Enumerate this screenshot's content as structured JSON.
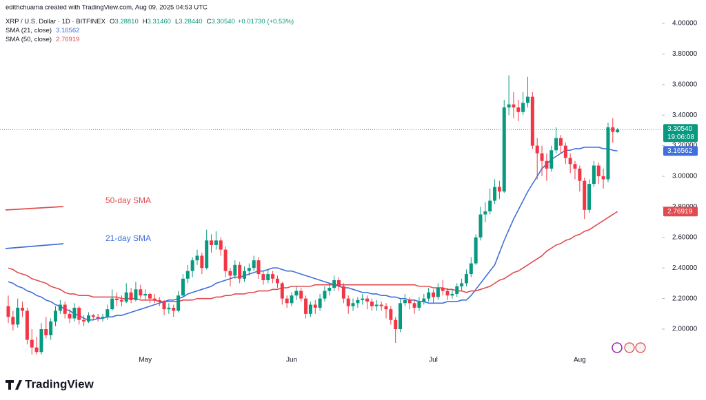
{
  "chart_data": {
    "type": "candlestick",
    "credit": "edithchuama created with TradingView.com, Aug 09, 2025 04:53 UTC",
    "title": "XRP / U.S. Dollar · 1D · BITFINEX",
    "ohlc_header": [
      {
        "key": "O",
        "value": "3.28810"
      },
      {
        "key": "H",
        "value": "3.31460"
      },
      {
        "key": "L",
        "value": "3.28440"
      },
      {
        "key": "C",
        "value": "3.30540"
      }
    ],
    "change": "+0.01730 (+0.53%)",
    "last_price_label": "3.30540",
    "countdown": "19:06:08",
    "logo": "TradingView",
    "up_color": "#089981",
    "down_color": "#f23645",
    "ylim": [
      1.766,
      4.153
    ],
    "yticks": [
      {
        "value": 2.0,
        "label": "2.00000"
      },
      {
        "value": 2.2,
        "label": "2.20000"
      },
      {
        "value": 2.4,
        "label": "2.40000"
      },
      {
        "value": 2.6,
        "label": "2.60000"
      },
      {
        "value": 2.8,
        "label": "2.80000"
      },
      {
        "value": 3.0,
        "label": "3.00000"
      },
      {
        "value": 3.2,
        "label": "3.20000"
      },
      {
        "value": 3.4,
        "label": "3.40000"
      },
      {
        "value": 3.6,
        "label": "3.60000"
      },
      {
        "value": 3.8,
        "label": "3.80000"
      },
      {
        "value": 4.0,
        "label": "4.00000"
      }
    ],
    "categories": [
      null,
      null,
      null,
      null,
      null,
      null,
      null,
      null,
      null,
      null,
      null,
      null,
      null,
      null,
      null,
      null,
      null,
      null,
      null,
      null,
      null,
      null,
      null,
      null,
      null,
      null,
      null,
      null,
      null,
      "May",
      null,
      null,
      null,
      null,
      null,
      null,
      null,
      null,
      null,
      null,
      null,
      null,
      null,
      null,
      null,
      null,
      null,
      null,
      null,
      null,
      null,
      null,
      null,
      null,
      null,
      null,
      null,
      null,
      null,
      null,
      "Jun",
      null,
      null,
      null,
      null,
      null,
      null,
      null,
      null,
      null,
      null,
      null,
      null,
      null,
      null,
      null,
      null,
      null,
      null,
      null,
      null,
      null,
      null,
      null,
      null,
      null,
      null,
      null,
      null,
      null,
      "Jul",
      null,
      null,
      null,
      null,
      null,
      null,
      null,
      null,
      null,
      null,
      null,
      null,
      null,
      null,
      null,
      null,
      null,
      null,
      null,
      null,
      null,
      null,
      null,
      null,
      null,
      null,
      null,
      null,
      null,
      null,
      "Aug",
      null,
      null,
      null,
      null,
      null,
      null,
      null,
      null
    ],
    "ohlc": [
      [
        2.15,
        2.22,
        2.04,
        2.08
      ],
      [
        2.08,
        2.12,
        1.99,
        2.03
      ],
      [
        2.03,
        2.2,
        2.01,
        2.14
      ],
      [
        2.14,
        2.18,
        2.08,
        2.12
      ],
      [
        2.12,
        2.14,
        1.9,
        1.93
      ],
      [
        1.93,
        2.0,
        1.8,
        1.88
      ],
      [
        1.88,
        1.95,
        1.82,
        1.85
      ],
      [
        1.85,
        2.04,
        1.83,
        2.0
      ],
      [
        2.0,
        2.08,
        1.94,
        1.96
      ],
      [
        1.96,
        2.07,
        1.93,
        2.05
      ],
      [
        2.05,
        2.15,
        2.02,
        2.12
      ],
      [
        2.12,
        2.19,
        2.1,
        2.16
      ],
      [
        2.16,
        2.18,
        2.07,
        2.1
      ],
      [
        2.1,
        2.13,
        2.04,
        2.07
      ],
      [
        2.07,
        2.17,
        2.05,
        2.14
      ],
      [
        2.14,
        2.15,
        2.03,
        2.06
      ],
      [
        2.06,
        2.09,
        2.02,
        2.05
      ],
      [
        2.05,
        2.11,
        2.04,
        2.09
      ],
      [
        2.09,
        2.1,
        2.06,
        2.08
      ],
      [
        2.08,
        2.1,
        2.05,
        2.07
      ],
      [
        2.07,
        2.1,
        2.05,
        2.08
      ],
      [
        2.08,
        2.16,
        2.06,
        2.13
      ],
      [
        2.13,
        2.26,
        2.12,
        2.2
      ],
      [
        2.2,
        2.24,
        2.15,
        2.19
      ],
      [
        2.19,
        2.22,
        2.15,
        2.18
      ],
      [
        2.18,
        2.3,
        2.17,
        2.24
      ],
      [
        2.24,
        2.27,
        2.17,
        2.19
      ],
      [
        2.19,
        2.31,
        2.18,
        2.26
      ],
      [
        2.26,
        2.29,
        2.2,
        2.22
      ],
      [
        2.22,
        2.26,
        2.19,
        2.23
      ],
      [
        2.23,
        2.24,
        2.17,
        2.2
      ],
      [
        2.2,
        2.23,
        2.17,
        2.19
      ],
      [
        2.19,
        2.21,
        2.15,
        2.18
      ],
      [
        2.18,
        2.19,
        2.09,
        2.13
      ],
      [
        2.13,
        2.17,
        2.1,
        2.14
      ],
      [
        2.14,
        2.16,
        2.08,
        2.12
      ],
      [
        2.12,
        2.25,
        2.11,
        2.22
      ],
      [
        2.22,
        2.36,
        2.21,
        2.33
      ],
      [
        2.33,
        2.42,
        2.3,
        2.38
      ],
      [
        2.38,
        2.47,
        2.34,
        2.45
      ],
      [
        2.45,
        2.52,
        2.42,
        2.48
      ],
      [
        2.48,
        2.5,
        2.36,
        2.4
      ],
      [
        2.4,
        2.65,
        2.39,
        2.58
      ],
      [
        2.58,
        2.62,
        2.5,
        2.55
      ],
      [
        2.55,
        2.64,
        2.52,
        2.58
      ],
      [
        2.58,
        2.6,
        2.48,
        2.52
      ],
      [
        2.52,
        2.54,
        2.34,
        2.38
      ],
      [
        2.38,
        2.4,
        2.28,
        2.35
      ],
      [
        2.35,
        2.45,
        2.33,
        2.42
      ],
      [
        2.42,
        2.44,
        2.3,
        2.33
      ],
      [
        2.33,
        2.41,
        2.31,
        2.38
      ],
      [
        2.38,
        2.43,
        2.35,
        2.4
      ],
      [
        2.4,
        2.48,
        2.38,
        2.45
      ],
      [
        2.45,
        2.47,
        2.33,
        2.36
      ],
      [
        2.36,
        2.38,
        2.29,
        2.32
      ],
      [
        2.32,
        2.39,
        2.3,
        2.36
      ],
      [
        2.36,
        2.38,
        2.3,
        2.33
      ],
      [
        2.33,
        2.35,
        2.27,
        2.3
      ],
      [
        2.3,
        2.31,
        2.16,
        2.2
      ],
      [
        2.2,
        2.22,
        2.14,
        2.17
      ],
      [
        2.17,
        2.24,
        2.15,
        2.22
      ],
      [
        2.22,
        2.28,
        2.19,
        2.25
      ],
      [
        2.25,
        2.27,
        2.18,
        2.2
      ],
      [
        2.2,
        2.22,
        2.07,
        2.1
      ],
      [
        2.1,
        2.18,
        2.08,
        2.16
      ],
      [
        2.16,
        2.19,
        2.1,
        2.14
      ],
      [
        2.14,
        2.23,
        2.12,
        2.2
      ],
      [
        2.2,
        2.28,
        2.18,
        2.25
      ],
      [
        2.25,
        2.3,
        2.22,
        2.27
      ],
      [
        2.27,
        2.35,
        2.25,
        2.32
      ],
      [
        2.32,
        2.34,
        2.25,
        2.28
      ],
      [
        2.28,
        2.3,
        2.17,
        2.2
      ],
      [
        2.2,
        2.22,
        2.1,
        2.15
      ],
      [
        2.15,
        2.2,
        2.12,
        2.17
      ],
      [
        2.17,
        2.21,
        2.14,
        2.19
      ],
      [
        2.19,
        2.23,
        2.16,
        2.2
      ],
      [
        2.2,
        2.22,
        2.13,
        2.18
      ],
      [
        2.18,
        2.2,
        2.12,
        2.15
      ],
      [
        2.15,
        2.19,
        2.12,
        2.16
      ],
      [
        2.16,
        2.18,
        2.12,
        2.15
      ],
      [
        2.15,
        2.17,
        2.07,
        2.13
      ],
      [
        2.13,
        2.15,
        2.03,
        2.06
      ],
      [
        2.06,
        2.08,
        1.91,
        2.0
      ],
      [
        2.0,
        2.2,
        1.98,
        2.17
      ],
      [
        2.17,
        2.23,
        2.15,
        2.19
      ],
      [
        2.19,
        2.21,
        2.13,
        2.17
      ],
      [
        2.17,
        2.19,
        2.1,
        2.14
      ],
      [
        2.14,
        2.21,
        2.12,
        2.18
      ],
      [
        2.18,
        2.23,
        2.16,
        2.2
      ],
      [
        2.2,
        2.27,
        2.18,
        2.24
      ],
      [
        2.24,
        2.26,
        2.17,
        2.21
      ],
      [
        2.21,
        2.3,
        2.19,
        2.27
      ],
      [
        2.27,
        2.32,
        2.22,
        2.25
      ],
      [
        2.25,
        2.27,
        2.19,
        2.22
      ],
      [
        2.22,
        2.26,
        2.2,
        2.23
      ],
      [
        2.23,
        2.3,
        2.21,
        2.28
      ],
      [
        2.28,
        2.33,
        2.25,
        2.3
      ],
      [
        2.3,
        2.39,
        2.28,
        2.36
      ],
      [
        2.36,
        2.47,
        2.34,
        2.43
      ],
      [
        2.43,
        2.62,
        2.42,
        2.6
      ],
      [
        2.6,
        2.8,
        2.58,
        2.75
      ],
      [
        2.75,
        2.83,
        2.7,
        2.77
      ],
      [
        2.77,
        2.92,
        2.75,
        2.84
      ],
      [
        2.84,
        2.98,
        2.82,
        2.93
      ],
      [
        2.93,
        2.97,
        2.85,
        2.9
      ],
      [
        2.9,
        3.5,
        2.89,
        3.45
      ],
      [
        3.45,
        3.66,
        3.4,
        3.47
      ],
      [
        3.47,
        3.55,
        3.38,
        3.45
      ],
      [
        3.45,
        3.5,
        3.36,
        3.42
      ],
      [
        3.42,
        3.55,
        3.4,
        3.48
      ],
      [
        3.48,
        3.65,
        3.45,
        3.52
      ],
      [
        3.52,
        3.55,
        3.18,
        3.2
      ],
      [
        3.2,
        3.25,
        2.98,
        3.15
      ],
      [
        3.15,
        3.2,
        3.0,
        3.1
      ],
      [
        3.1,
        3.15,
        2.97,
        3.05
      ],
      [
        3.05,
        3.2,
        3.03,
        3.17
      ],
      [
        3.17,
        3.32,
        3.15,
        3.25
      ],
      [
        3.25,
        3.27,
        3.15,
        3.2
      ],
      [
        3.2,
        3.22,
        3.08,
        3.12
      ],
      [
        3.12,
        3.15,
        3.02,
        3.08
      ],
      [
        3.08,
        3.1,
        2.98,
        3.05
      ],
      [
        3.05,
        3.07,
        2.9,
        2.97
      ],
      [
        2.97,
        2.99,
        2.72,
        2.78
      ],
      [
        2.78,
        2.98,
        2.76,
        2.95
      ],
      [
        2.95,
        3.1,
        2.93,
        3.07
      ],
      [
        3.07,
        3.09,
        2.95,
        3.0
      ],
      [
        3.0,
        3.05,
        2.92,
        2.98
      ],
      [
        2.98,
        3.35,
        2.96,
        3.32
      ],
      [
        3.32,
        3.38,
        3.22,
        3.29
      ],
      [
        3.2881,
        3.3146,
        3.2844,
        3.3054
      ]
    ],
    "series": [
      {
        "name": "SMA (21, close)",
        "color": "#3f6fd8",
        "last_label": "3.16562",
        "annotation": "21-day SMA",
        "values": [
          2.31,
          2.3,
          2.28,
          2.27,
          2.25,
          2.24,
          2.22,
          2.21,
          2.19,
          2.18,
          2.16,
          2.15,
          2.13,
          2.12,
          2.1,
          2.09,
          2.07,
          2.06,
          2.06,
          2.07,
          2.07,
          2.08,
          2.08,
          2.09,
          2.09,
          2.1,
          2.11,
          2.12,
          2.13,
          2.14,
          2.15,
          2.16,
          2.17,
          2.18,
          2.19,
          2.19,
          2.2,
          2.21,
          2.23,
          2.24,
          2.25,
          2.26,
          2.27,
          2.28,
          2.3,
          2.31,
          2.32,
          2.33,
          2.34,
          2.34,
          2.35,
          2.36,
          2.37,
          2.38,
          2.38,
          2.39,
          2.4,
          2.4,
          2.39,
          2.38,
          2.38,
          2.37,
          2.36,
          2.35,
          2.34,
          2.33,
          2.32,
          2.31,
          2.3,
          2.29,
          2.28,
          2.27,
          2.27,
          2.26,
          2.25,
          2.24,
          2.24,
          2.23,
          2.23,
          2.22,
          2.22,
          2.21,
          2.21,
          2.2,
          2.2,
          2.19,
          2.19,
          2.18,
          2.18,
          2.17,
          2.17,
          2.17,
          2.17,
          2.18,
          2.18,
          2.18,
          2.19,
          2.19,
          2.22,
          2.26,
          2.3,
          2.34,
          2.38,
          2.42,
          2.5,
          2.58,
          2.65,
          2.72,
          2.78,
          2.84,
          2.9,
          2.95,
          3.0,
          3.05,
          3.08,
          3.11,
          3.13,
          3.15,
          3.17,
          3.17,
          3.18,
          3.18,
          3.19,
          3.19,
          3.19,
          3.19,
          3.18,
          3.18,
          3.17,
          3.16562
        ]
      },
      {
        "name": "SMA (50, close)",
        "color": "#e04b4f",
        "last_label": "2.76919",
        "annotation": "50-day SMA",
        "values": [
          2.4,
          2.39,
          2.37,
          2.36,
          2.35,
          2.33,
          2.32,
          2.31,
          2.3,
          2.28,
          2.27,
          2.26,
          2.24,
          2.23,
          2.23,
          2.22,
          2.22,
          2.22,
          2.21,
          2.21,
          2.21,
          2.21,
          2.21,
          2.21,
          2.2,
          2.2,
          2.2,
          2.2,
          2.19,
          2.19,
          2.19,
          2.19,
          2.18,
          2.18,
          2.18,
          2.18,
          2.18,
          2.19,
          2.19,
          2.19,
          2.2,
          2.2,
          2.2,
          2.2,
          2.21,
          2.21,
          2.22,
          2.22,
          2.23,
          2.23,
          2.23,
          2.24,
          2.24,
          2.25,
          2.25,
          2.25,
          2.26,
          2.26,
          2.27,
          2.27,
          2.28,
          2.28,
          2.28,
          2.28,
          2.28,
          2.29,
          2.29,
          2.29,
          2.29,
          2.29,
          2.29,
          2.29,
          2.29,
          2.29,
          2.29,
          2.29,
          2.29,
          2.29,
          2.29,
          2.29,
          2.29,
          2.29,
          2.29,
          2.29,
          2.29,
          2.29,
          2.29,
          2.28,
          2.28,
          2.28,
          2.27,
          2.27,
          2.27,
          2.26,
          2.26,
          2.25,
          2.25,
          2.24,
          2.25,
          2.25,
          2.26,
          2.27,
          2.28,
          2.3,
          2.32,
          2.33,
          2.35,
          2.37,
          2.38,
          2.4,
          2.42,
          2.44,
          2.46,
          2.48,
          2.51,
          2.53,
          2.55,
          2.56,
          2.58,
          2.59,
          2.61,
          2.62,
          2.64,
          2.65,
          2.67,
          2.69,
          2.71,
          2.73,
          2.75,
          2.76919
        ]
      }
    ]
  }
}
